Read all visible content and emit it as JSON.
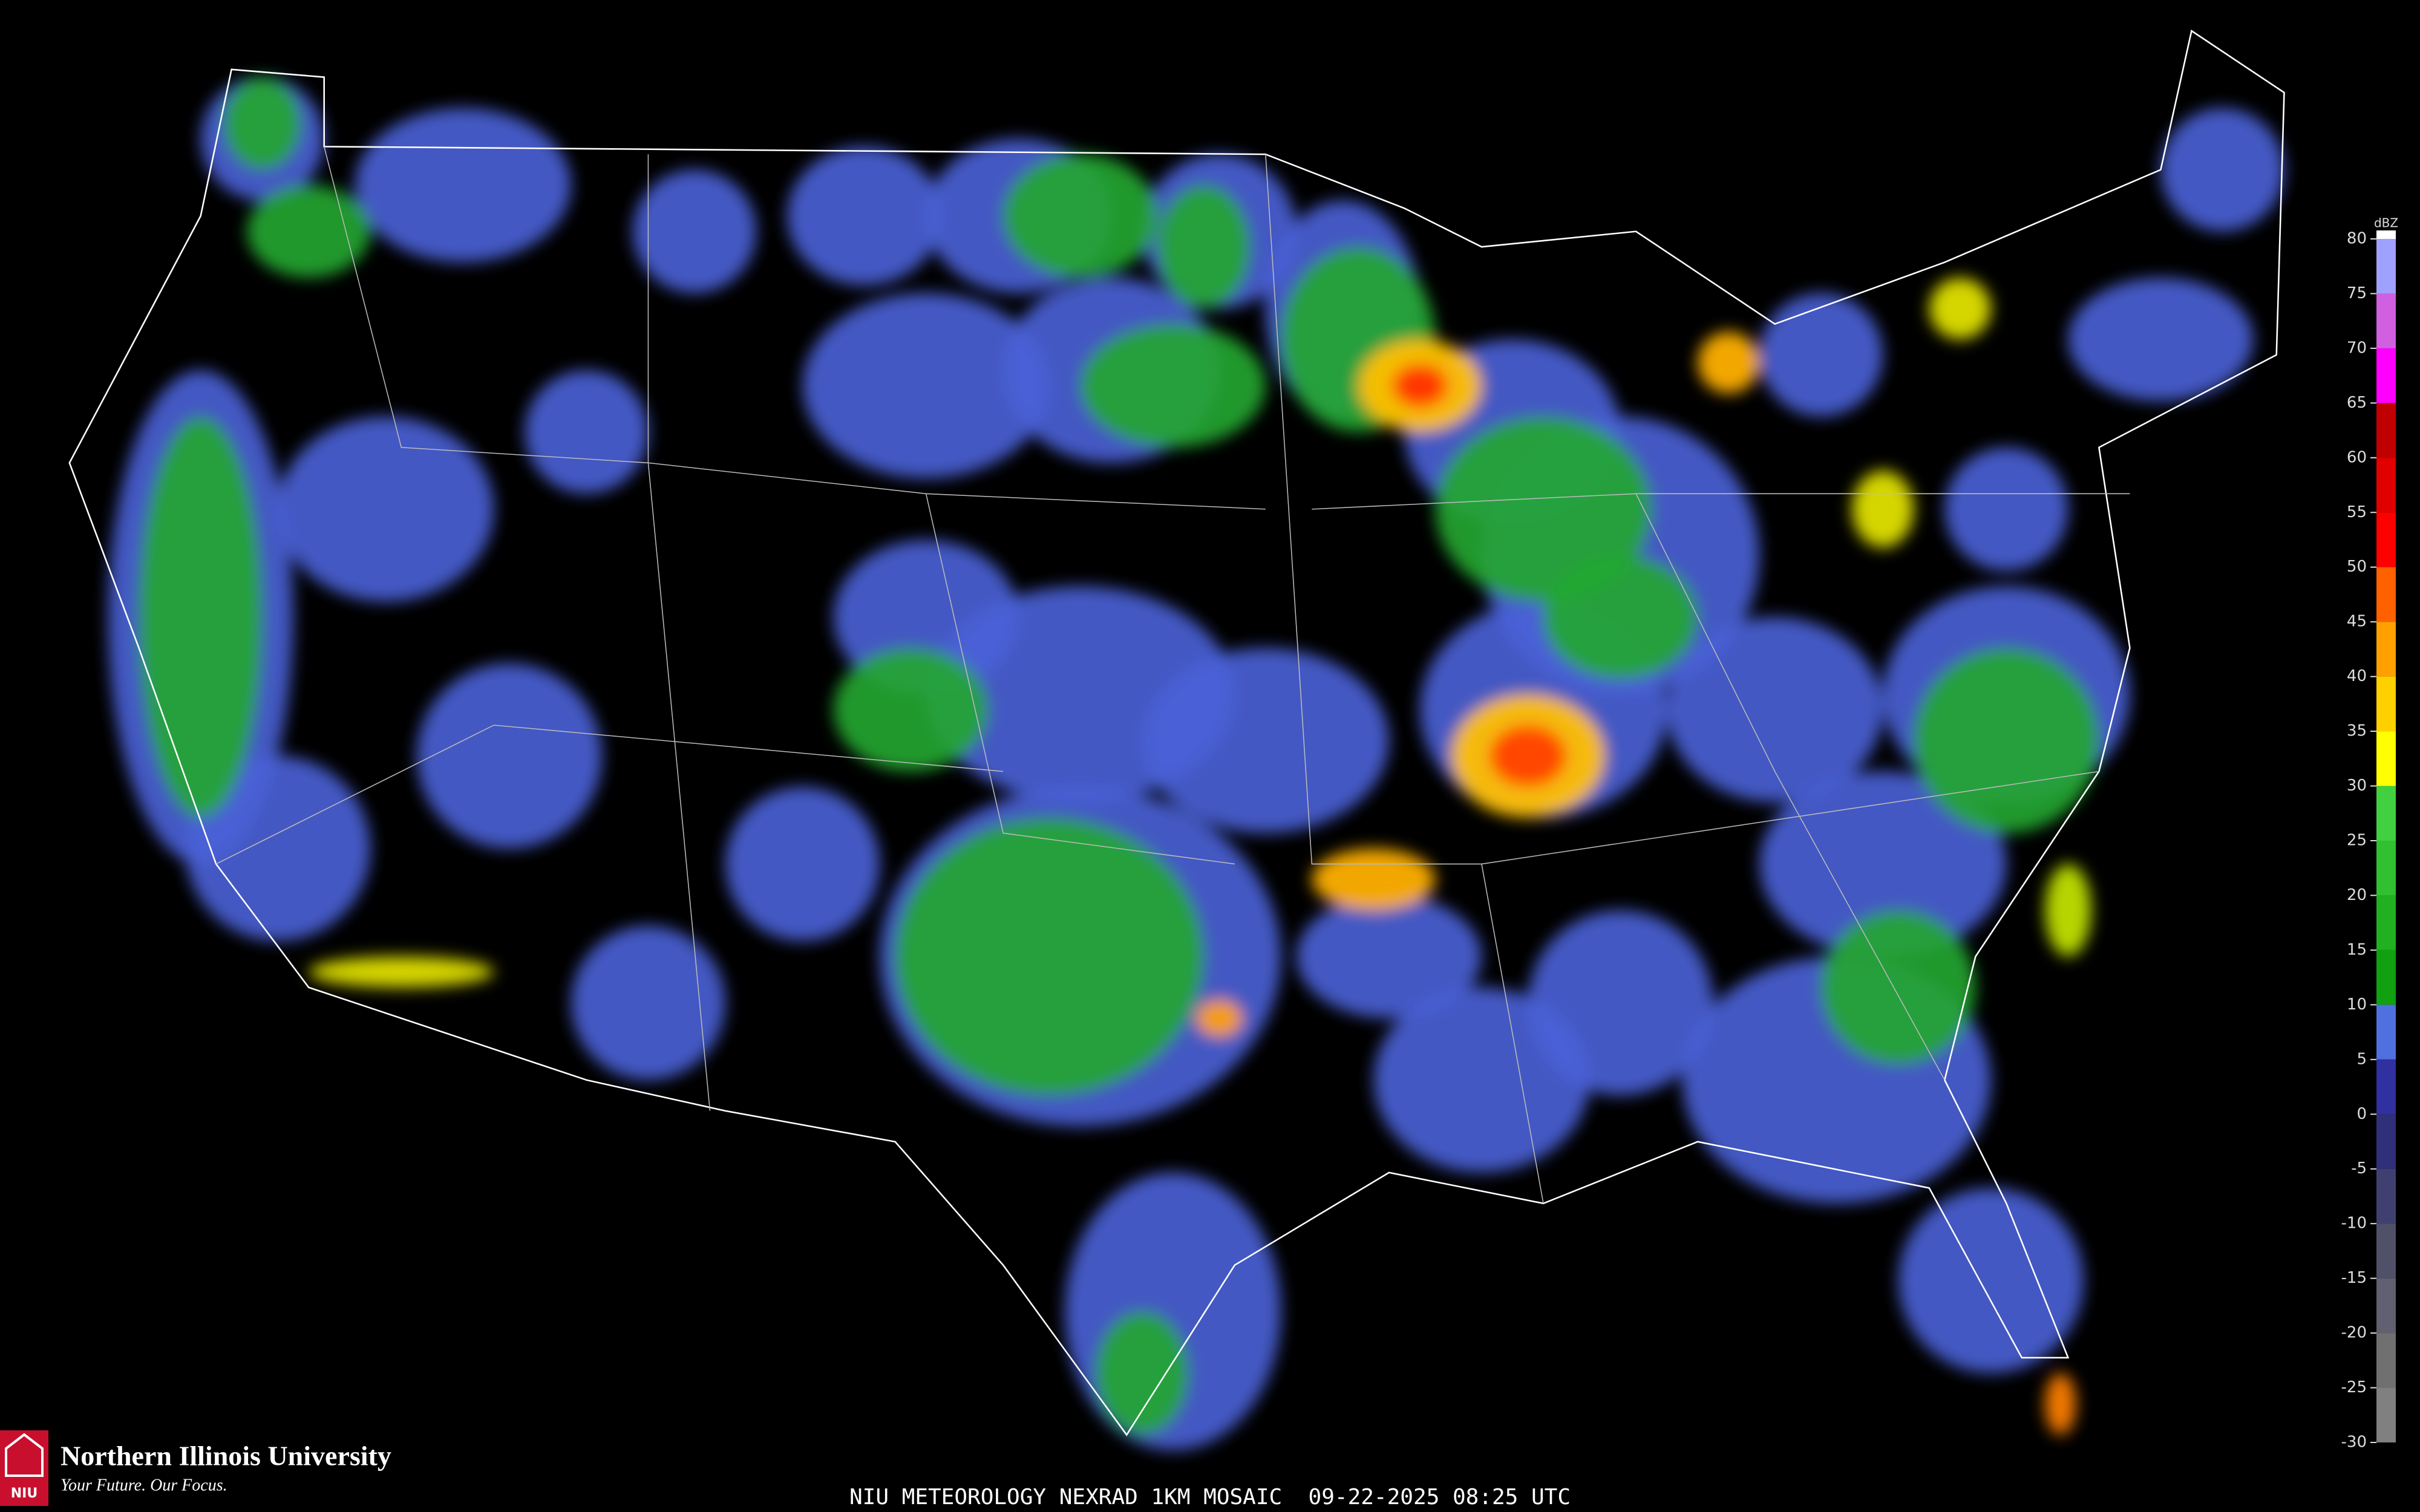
{
  "title": "NIU METEOROLOGY NEXRAD 1KM MOSAIC  09-22-2025 08:25 UTC",
  "logo": {
    "badge": "NIU",
    "name": "Northern Illinois University",
    "tagline": "Your Future. Our Focus."
  },
  "colorbar": {
    "unit": "dBZ",
    "ticks": [
      80,
      75,
      70,
      65,
      60,
      55,
      50,
      45,
      40,
      35,
      30,
      25,
      20,
      15,
      10,
      5,
      0,
      -5,
      -10,
      -15,
      -20,
      -25,
      -30
    ],
    "colors": [
      "#a0a0ff",
      "#d060e0",
      "#ff00ff",
      "#c00000",
      "#e00000",
      "#ff0000",
      "#ff6000",
      "#ffa000",
      "#ffd000",
      "#ffff00",
      "#40d040",
      "#30c030",
      "#20b020",
      "#10a010",
      "#5070e0",
      "#3030a0",
      "#30307a",
      "#404070",
      "#505068",
      "#606070",
      "#707070",
      "#808080"
    ]
  }
}
